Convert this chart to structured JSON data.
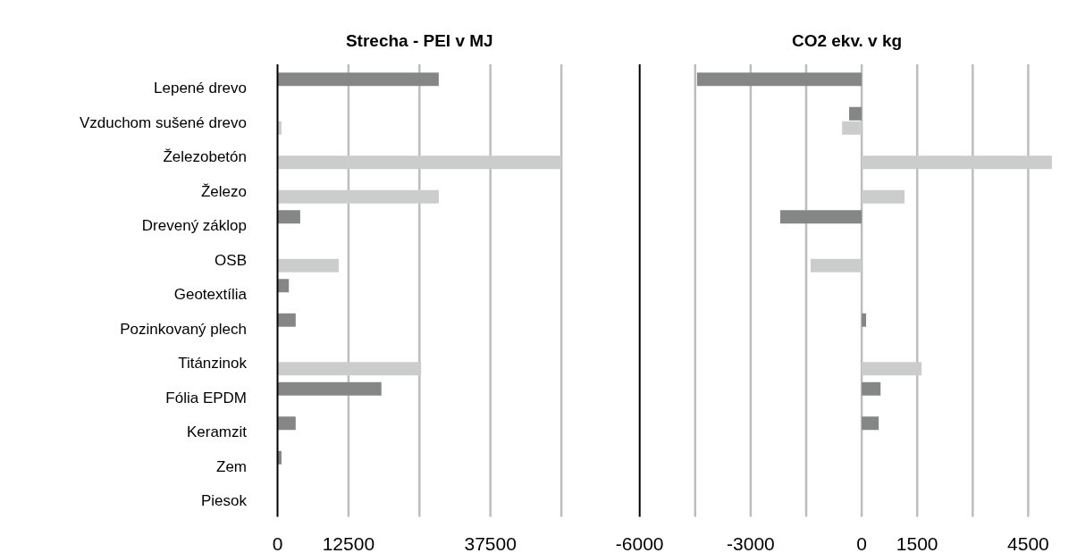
{
  "chart_data": [
    {
      "type": "bar",
      "orientation": "horizontal",
      "title": "Strecha - PEI v MJ",
      "categories": [
        "Lepené drevo",
        "Vzduchom sušené drevo",
        "Železobetón",
        "Železo",
        "Drevený záklop",
        "OSB",
        "Geotextília",
        "Pozinkovaný plech",
        "Titánzinok",
        "Fólia EPDM",
        "Keramzit",
        "Zem",
        "Piesok"
      ],
      "series": [
        {
          "color": "#858786",
          "values": [
            28400,
            null,
            null,
            null,
            4000,
            null,
            2000,
            3200,
            null,
            18300,
            3200,
            700,
            null
          ]
        },
        {
          "color": "#cbcdcc",
          "values": [
            null,
            700,
            50000,
            28400,
            null,
            10800,
            null,
            null,
            25300,
            null,
            null,
            null,
            null
          ]
        }
      ],
      "xlim": [
        0,
        50000
      ],
      "xticks": [
        0,
        12500,
        {
          "value": 25000,
          "label": null
        },
        37500,
        {
          "value": 50000,
          "label": null
        }
      ],
      "grid": "x"
    },
    {
      "type": "bar",
      "orientation": "horizontal",
      "title": "CO2 ekv. v kg",
      "categories": [
        "Lepené drevo",
        "Vzduchom sušené drevo",
        "Železobetón",
        "Železo",
        "Drevený záklop",
        "OSB",
        "Geotextília",
        "Pozinkovaný plech",
        "Titánzinok",
        "Fólia EPDM",
        "Keramzit",
        "Zem",
        "Piesok"
      ],
      "series": [
        {
          "color": "#858786",
          "values": [
            -4450,
            -340,
            null,
            null,
            -2200,
            null,
            null,
            120,
            null,
            510,
            460,
            null,
            null
          ]
        },
        {
          "color": "#cbcdcc",
          "values": [
            null,
            -530,
            5140,
            1160,
            null,
            -1380,
            null,
            null,
            1620,
            null,
            null,
            null,
            null
          ]
        }
      ],
      "xlim": [
        -6000,
        5200
      ],
      "xticks": [
        -6000,
        {
          "value": -4500,
          "label": null
        },
        -3000,
        {
          "value": -1500,
          "label": null
        },
        0,
        1500,
        {
          "value": 3000,
          "label": null
        },
        4500
      ],
      "grid": "x",
      "tick_labels": "x"
    }
  ]
}
